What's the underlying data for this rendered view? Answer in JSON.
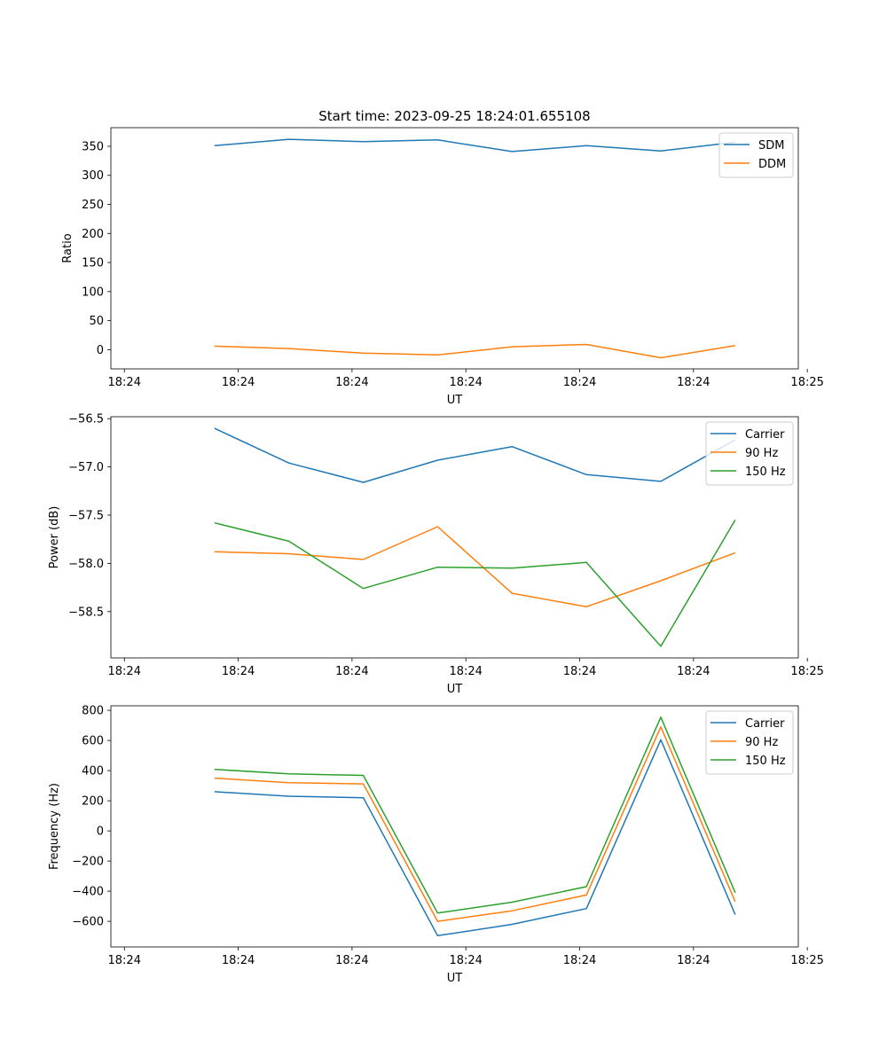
{
  "figure_title": "Start time: 2023-09-25 18:24:01.655108",
  "chart_data": [
    {
      "type": "line",
      "ylabel": "Ratio",
      "xlabel": "UT",
      "x": [
        0.46,
        0.79,
        1.12,
        1.45,
        1.78,
        2.11,
        2.44,
        2.77
      ],
      "xlim": [
        0.0,
        3.05
      ],
      "xticks": [
        0.06,
        0.565,
        1.07,
        1.575,
        2.08,
        2.585,
        3.09
      ],
      "xtick_labels": [
        "18:24",
        "18:24",
        "18:24",
        "18:24",
        "18:24",
        "18:24",
        "18:25"
      ],
      "ylim": [
        -33,
        382
      ],
      "yticks": [
        0,
        50,
        100,
        150,
        200,
        250,
        300,
        350
      ],
      "ytick_labels": [
        "0",
        "50",
        "100",
        "150",
        "200",
        "250",
        "300",
        "350"
      ],
      "legend_position": "top-right",
      "series": [
        {
          "name": "SDM",
          "color": "#1f77b4",
          "values": [
            351,
            362,
            358,
            361,
            341,
            351,
            342,
            357
          ]
        },
        {
          "name": "DDM",
          "color": "#ff7f0e",
          "values": [
            6,
            2,
            -6,
            -9,
            5,
            9,
            -14,
            7
          ]
        }
      ]
    },
    {
      "type": "line",
      "ylabel": "Power (dB)",
      "xlabel": "UT",
      "x": [
        0.46,
        0.79,
        1.12,
        1.45,
        1.78,
        2.11,
        2.44,
        2.77
      ],
      "xlim": [
        0.0,
        3.05
      ],
      "xticks": [
        0.06,
        0.565,
        1.07,
        1.575,
        2.08,
        2.585,
        3.09
      ],
      "xtick_labels": [
        "18:24",
        "18:24",
        "18:24",
        "18:24",
        "18:24",
        "18:24",
        "18:25"
      ],
      "ylim": [
        -58.98,
        -56.48
      ],
      "yticks": [
        -58.5,
        -58.0,
        -57.5,
        -57.0,
        -56.5
      ],
      "ytick_labels": [
        "−58.5",
        "−58.0",
        "−57.5",
        "−57.0",
        "−56.5"
      ],
      "legend_position": "top-right",
      "series": [
        {
          "name": "Carrier",
          "color": "#1f77b4",
          "values": [
            -56.6,
            -56.96,
            -57.16,
            -56.93,
            -56.79,
            -57.08,
            -57.15,
            -56.72
          ]
        },
        {
          "name": "90 Hz",
          "color": "#ff7f0e",
          "values": [
            -57.88,
            -57.9,
            -57.96,
            -57.62,
            -58.31,
            -58.45,
            -58.18,
            -57.89
          ]
        },
        {
          "name": "150 Hz",
          "color": "#2ca02c",
          "values": [
            -57.58,
            -57.77,
            -58.26,
            -58.04,
            -58.05,
            -57.99,
            -58.86,
            -57.55
          ]
        }
      ]
    },
    {
      "type": "line",
      "ylabel": "Frequency (Hz)",
      "xlabel": "UT",
      "x": [
        0.46,
        0.79,
        1.12,
        1.45,
        1.78,
        2.11,
        2.44,
        2.77
      ],
      "xlim": [
        0.0,
        3.05
      ],
      "xticks": [
        0.06,
        0.565,
        1.07,
        1.575,
        2.08,
        2.585,
        3.09
      ],
      "xtick_labels": [
        "18:24",
        "18:24",
        "18:24",
        "18:24",
        "18:24",
        "18:24",
        "18:25"
      ],
      "ylim": [
        -770,
        830
      ],
      "yticks": [
        -600,
        -400,
        -200,
        0,
        200,
        400,
        600,
        800
      ],
      "ytick_labels": [
        "−600",
        "−400",
        "−200",
        "0",
        "200",
        "400",
        "600",
        "800"
      ],
      "legend_position": "top-right",
      "series": [
        {
          "name": "Carrier",
          "color": "#1f77b4",
          "values": [
            260,
            230,
            220,
            -695,
            -620,
            -515,
            605,
            -555
          ]
        },
        {
          "name": "90 Hz",
          "color": "#ff7f0e",
          "values": [
            350,
            320,
            312,
            -600,
            -530,
            -425,
            690,
            -470
          ]
        },
        {
          "name": "150 Hz",
          "color": "#2ca02c",
          "values": [
            408,
            378,
            368,
            -545,
            -473,
            -370,
            755,
            -410
          ]
        }
      ]
    }
  ]
}
